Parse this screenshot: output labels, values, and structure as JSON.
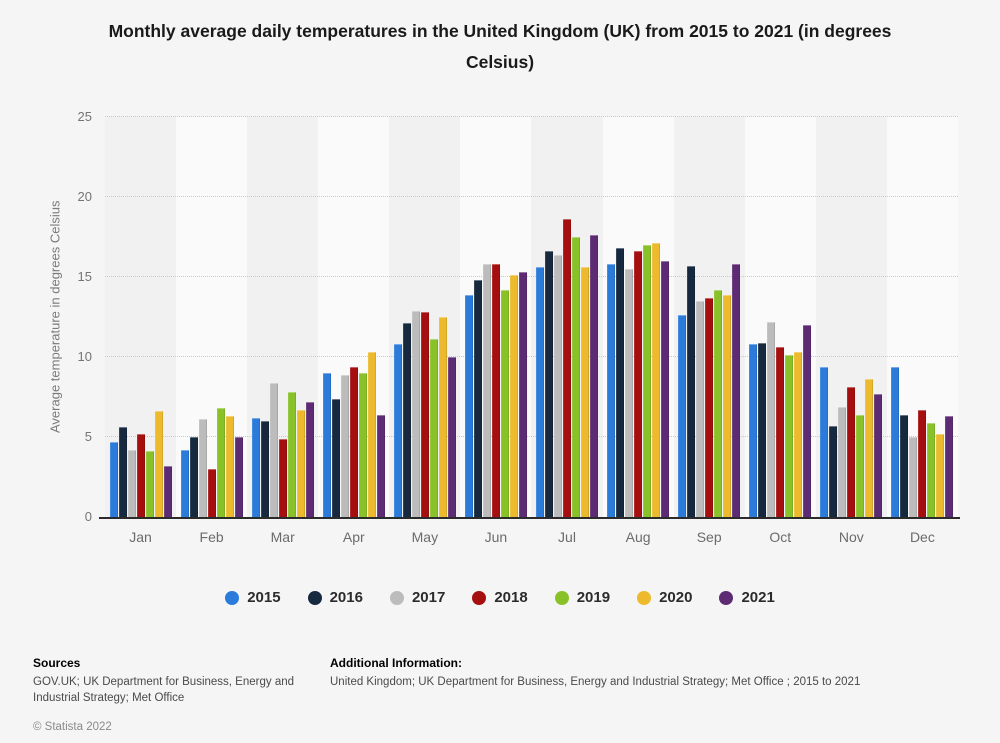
{
  "title": "Monthly average daily temperatures in the United Kingdom (UK) from 2015 to 2021 (in degrees Celsius)",
  "chart_data": {
    "type": "bar",
    "title": "Monthly average daily temperatures in the United Kingdom (UK) from 2015 to 2021 (in degrees Celsius)",
    "categories": [
      "Jan",
      "Feb",
      "Mar",
      "Apr",
      "May",
      "Jun",
      "Jul",
      "Aug",
      "Sep",
      "Oct",
      "Nov",
      "Dec"
    ],
    "series": [
      {
        "name": "2015",
        "color": "#2b7bda",
        "values": [
          4.7,
          4.2,
          6.2,
          9.0,
          10.8,
          13.9,
          15.6,
          15.8,
          12.6,
          10.8,
          9.4,
          9.4
        ]
      },
      {
        "name": "2016",
        "color": "#16293f",
        "values": [
          5.6,
          5.0,
          6.0,
          7.4,
          12.1,
          14.8,
          16.6,
          16.8,
          15.7,
          10.9,
          5.7,
          6.4
        ]
      },
      {
        "name": "2017",
        "color": "#bcbcbc",
        "values": [
          4.2,
          6.1,
          8.4,
          8.9,
          12.9,
          15.8,
          16.4,
          15.5,
          13.5,
          12.2,
          6.9,
          5.0
        ]
      },
      {
        "name": "2018",
        "color": "#a50f0f",
        "values": [
          5.2,
          3.0,
          4.9,
          9.4,
          12.8,
          15.8,
          18.6,
          16.6,
          13.7,
          10.6,
          8.1,
          6.7
        ]
      },
      {
        "name": "2019",
        "color": "#88c228",
        "values": [
          4.1,
          6.8,
          7.8,
          9.0,
          11.1,
          14.2,
          17.5,
          17.0,
          14.2,
          10.1,
          6.4,
          5.9
        ]
      },
      {
        "name": "2020",
        "color": "#ecba2c",
        "values": [
          6.6,
          6.3,
          6.7,
          10.3,
          12.5,
          15.1,
          15.6,
          17.1,
          13.9,
          10.3,
          8.6,
          5.2
        ]
      },
      {
        "name": "2021",
        "color": "#5d2b74",
        "values": [
          3.2,
          5.0,
          7.2,
          6.4,
          10.0,
          15.3,
          17.6,
          16.0,
          15.8,
          12.0,
          7.7,
          6.3
        ]
      }
    ],
    "xlabel": "",
    "ylabel": "Average temperature in degrees Celsius",
    "ylim": [
      0,
      25
    ],
    "yticks": [
      0,
      5,
      10,
      15,
      20,
      25
    ],
    "grid": "horizontal-dotted",
    "legend_position": "bottom",
    "plot_background": {
      "stripe_odd": "#f1f1f1",
      "stripe_even": "#fafafa"
    }
  },
  "footer": {
    "sources_label": "Sources",
    "sources_text": "GOV.UK; UK Department for Business, Energy and Industrial Strategy; Met Office",
    "copyright": "© Statista 2022",
    "additional_label": "Additional Information:",
    "additional_text": "United Kingdom; UK Department for Business, Energy and Industrial Strategy; Met Office ; 2015 to 2021"
  }
}
